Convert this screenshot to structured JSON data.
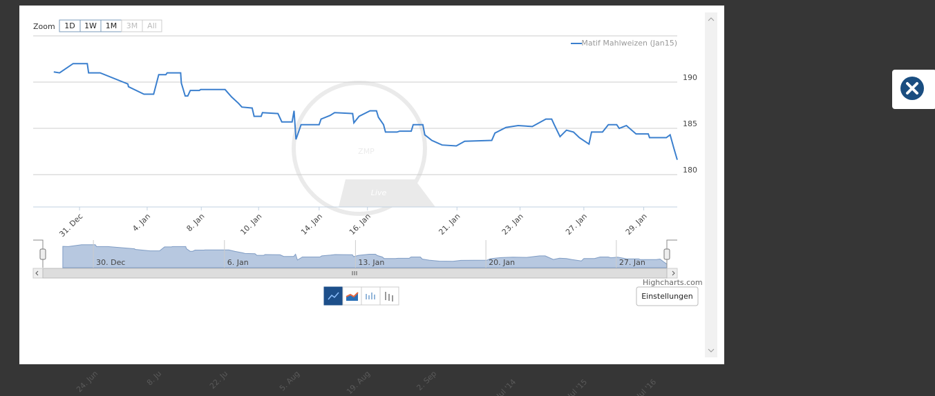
{
  "ui": {
    "zoom_label": "Zoom",
    "zoom_buttons": [
      {
        "label": "1D",
        "enabled": true
      },
      {
        "label": "1W",
        "enabled": true
      },
      {
        "label": "1M",
        "enabled": true
      },
      {
        "label": "3M",
        "enabled": false
      },
      {
        "label": "All",
        "enabled": false
      }
    ],
    "credits": "Highcharts.com",
    "settings_button": "Einstellungen",
    "watermark": [
      "ZMP",
      "Live"
    ],
    "background_labels": [
      "24. Jun",
      "8. Ju",
      "22. Ju",
      "5. Aug",
      "19. Aug",
      "2. Sep",
      "Jul '14",
      "Jul '15",
      "Jul '16"
    ]
  },
  "chart_data": {
    "type": "line",
    "x": [
      3.2,
      4.1,
      6.2,
      8.4,
      8.6,
      10.4,
      14.7,
      14.8,
      17.2,
      18.7,
      19.5,
      20.6,
      20.8,
      22.9,
      23.0,
      23.6,
      24.0,
      24.4,
      25.8,
      26.0,
      27.3,
      27.6,
      29.8,
      30.8,
      31.9,
      32.4,
      34.0,
      34.3,
      35.4,
      35.6,
      38.0,
      38.6,
      40.2,
      40.5,
      40.8,
      41.6,
      44.4,
      44.7,
      46.1,
      46.8,
      49.6,
      49.8,
      50.6,
      52.3,
      53.3,
      53.6,
      54.4,
      54.7,
      56.5,
      56.9,
      58.7,
      59.0,
      60.5,
      60.8,
      61.9,
      63.5,
      65.7,
      67.0,
      71.2,
      71.7,
      73.4,
      75.3,
      77.5,
      79.6,
      80.5,
      80.9,
      81.8,
      82.8,
      83.9,
      84.8,
      86.3,
      86.7,
      88.4,
      89.3,
      90.6,
      91.0,
      92.1,
      93.6,
      95.5,
      95.7,
      98.3,
      98.9,
      99.5,
      100
    ],
    "series": [
      {
        "name": "Matif Mahlweizen (Jan15)",
        "color": "#3a7fce",
        "values": [
          191.1,
          191.0,
          192.0,
          192.0,
          191.0,
          191.0,
          189.8,
          189.5,
          188.7,
          188.7,
          190.8,
          190.8,
          191.0,
          191.0,
          189.9,
          188.5,
          188.5,
          189.1,
          189.1,
          189.2,
          189.2,
          189.2,
          189.2,
          188.4,
          187.7,
          187.3,
          187.2,
          186.3,
          186.3,
          186.7,
          186.6,
          185.7,
          185.7,
          186.9,
          183.8,
          185.4,
          185.4,
          186.0,
          186.4,
          186.7,
          186.6,
          185.6,
          186.3,
          186.9,
          186.9,
          186.2,
          185.4,
          184.6,
          184.6,
          184.7,
          184.7,
          185.4,
          185.4,
          184.3,
          183.7,
          183.2,
          183.1,
          183.6,
          183.7,
          184.5,
          185.1,
          185.3,
          185.2,
          186.0,
          186.0,
          185.4,
          184.1,
          184.8,
          184.6,
          184.0,
          183.3,
          184.6,
          184.6,
          185.4,
          185.4,
          185.0,
          185.3,
          184.4,
          184.4,
          184.0,
          184.0,
          184.3,
          182.8,
          181.6
        ]
      }
    ],
    "xlim": [
      0,
      100
    ],
    "xticks": [
      {
        "value": 7.2,
        "label": "31. Dec"
      },
      {
        "value": 17.7,
        "label": "4. Jan"
      },
      {
        "value": 26.1,
        "label": "8. Jan"
      },
      {
        "value": 35.0,
        "label": "10. Jan"
      },
      {
        "value": 44.4,
        "label": "14. Jan"
      },
      {
        "value": 51.9,
        "label": "16. Jan"
      },
      {
        "value": 65.8,
        "label": "21. Jan"
      },
      {
        "value": 75.6,
        "label": "23. Jan"
      },
      {
        "value": 85.5,
        "label": "27. Jan"
      },
      {
        "value": 94.8,
        "label": "29. Jan"
      }
    ],
    "ylim": [
      176.5,
      195
    ],
    "yticks": [
      180,
      185,
      190
    ],
    "grid": true,
    "legend": "top-right",
    "navigator": {
      "xlim": [
        0,
        100
      ],
      "xticks": [
        {
          "value": 8.1,
          "label": "30. Dec"
        },
        {
          "value": 29.1,
          "label": "6. Jan"
        },
        {
          "value": 50.1,
          "label": "13. Jan"
        },
        {
          "value": 71.0,
          "label": "20. Jan"
        },
        {
          "value": 91.9,
          "label": "27. Jan"
        }
      ]
    }
  }
}
